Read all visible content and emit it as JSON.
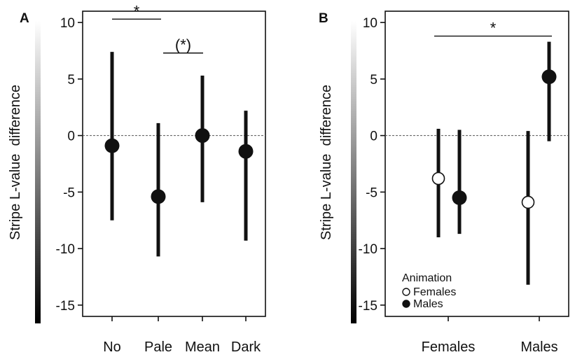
{
  "chart_data": [
    {
      "panel_label": "A",
      "type": "scatter",
      "style": "point-range",
      "ylabel": "Stripe L-value  difference",
      "ylim": [
        -16,
        11
      ],
      "yticks": [
        10,
        5,
        0,
        -5,
        -10,
        -15
      ],
      "ytick_labels": [
        "10",
        "5",
        "0",
        "-5",
        "-10",
        "-15"
      ],
      "categories": [
        "No",
        "Pale",
        "Mean",
        "Dark"
      ],
      "reference_line": 0,
      "series": [
        {
          "marker": "filled-circle",
          "values": [
            -0.9,
            -5.4,
            0.0,
            -1.4
          ],
          "lower": [
            -7.5,
            -10.7,
            -5.9,
            -9.3
          ],
          "upper": [
            7.4,
            1.1,
            5.3,
            2.2
          ]
        }
      ],
      "annotations": [
        {
          "text": "*",
          "from": "No",
          "to": "Pale",
          "y": 10.3
        },
        {
          "text": "(*)",
          "from": "Pale",
          "to": "Mean",
          "y": 7.3
        }
      ],
      "y_gradient_bar": true
    },
    {
      "panel_label": "B",
      "type": "scatter",
      "style": "point-range",
      "ylabel": "Stripe L-value  difference",
      "ylim": [
        -16,
        11
      ],
      "yticks": [
        10,
        5,
        0,
        -5,
        -10,
        -15
      ],
      "ytick_labels": [
        "10",
        "5",
        "0",
        "-5",
        "-10",
        "-15"
      ],
      "categories": [
        "Females",
        "Males"
      ],
      "reference_line": 0,
      "legend": {
        "title": "Animation",
        "placement": "bottom-left",
        "entries": [
          {
            "label": "Females",
            "marker": "open-circle"
          },
          {
            "label": "Males",
            "marker": "filled-circle"
          }
        ]
      },
      "series": [
        {
          "name": "Females",
          "marker": "open-circle",
          "values": [
            -3.8,
            -5.9
          ],
          "lower": [
            -9.0,
            -13.2
          ],
          "upper": [
            0.6,
            0.4
          ]
        },
        {
          "name": "Males",
          "marker": "filled-circle",
          "values": [
            -5.5,
            5.2
          ],
          "lower": [
            -8.7,
            -0.5
          ],
          "upper": [
            0.5,
            8.3
          ]
        }
      ],
      "annotations": [
        {
          "text": "*",
          "from": "Females",
          "to": "Males",
          "y": 8.8
        }
      ],
      "y_gradient_bar": true
    }
  ]
}
